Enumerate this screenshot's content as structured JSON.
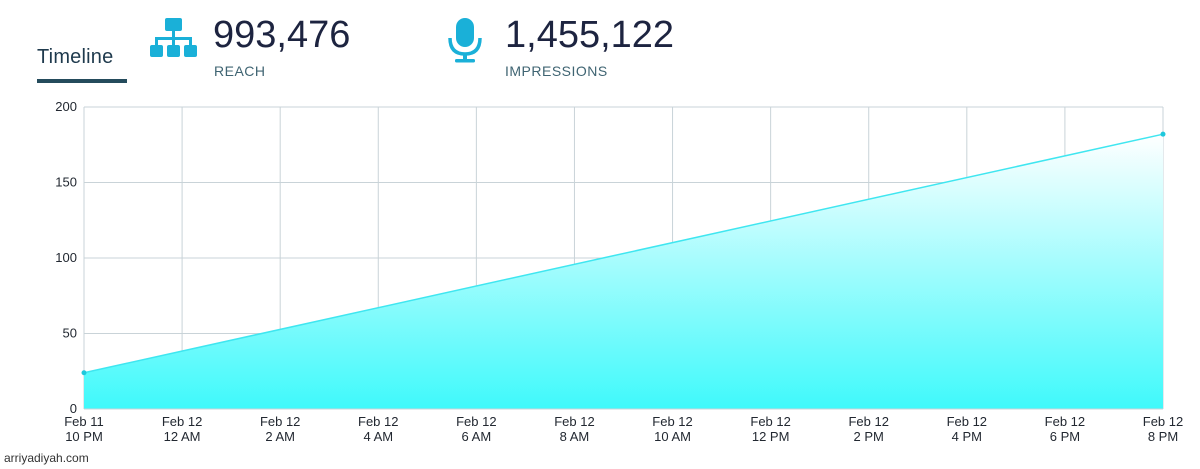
{
  "header": {
    "tab_label": "Timeline",
    "stats": [
      {
        "value": "993,476",
        "label": "REACH",
        "icon": "sitemap-icon"
      },
      {
        "value": "1,455,122",
        "label": "IMPRESSIONS",
        "icon": "microphone-icon"
      }
    ],
    "accent_color": "#1ab0d8"
  },
  "chart_data": {
    "type": "area",
    "title": "",
    "xlabel": "",
    "ylabel": "",
    "categories": [
      [
        "Feb 11",
        "10 PM"
      ],
      [
        "Feb 12",
        "12 AM"
      ],
      [
        "Feb 12",
        "2 AM"
      ],
      [
        "Feb 12",
        "4 AM"
      ],
      [
        "Feb 12",
        "6 AM"
      ],
      [
        "Feb 12",
        "8 AM"
      ],
      [
        "Feb 12",
        "10 AM"
      ],
      [
        "Feb 12",
        "12 PM"
      ],
      [
        "Feb 12",
        "2 PM"
      ],
      [
        "Feb 12",
        "4 PM"
      ],
      [
        "Feb 12",
        "6 PM"
      ],
      [
        "Feb 12",
        "8 PM"
      ]
    ],
    "points": [
      {
        "x": "Feb 11 10 PM",
        "y": 24
      },
      {
        "x": "Feb 12 8 PM",
        "y": 182
      }
    ],
    "ylim": [
      0,
      200
    ],
    "yticks": [
      0,
      50,
      100,
      150,
      200
    ],
    "grid": true,
    "line_color": "#3fe6f0",
    "fill_color": "#3ff9fb"
  },
  "footer": {
    "watermark": "arriyadiyah.com"
  }
}
